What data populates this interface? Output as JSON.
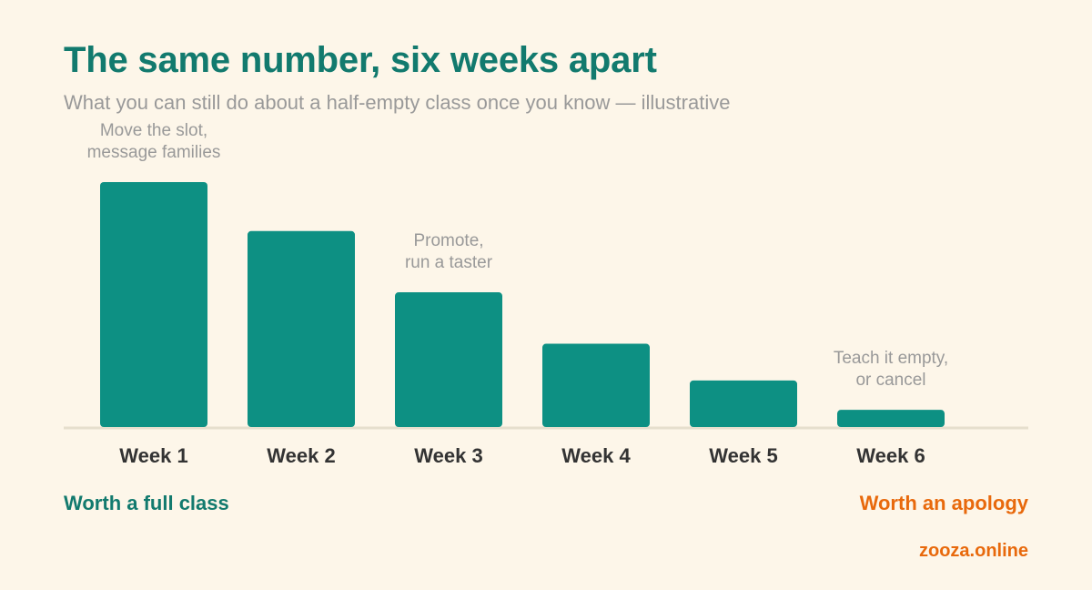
{
  "title": "The same number, six weeks apart",
  "subtitle": "What you can still do about a half-empty class once you know — illustrative",
  "colors": {
    "title": "#127a6e",
    "bar": "#0d9083",
    "baseline": "#e6dfcd",
    "annotation": "#999999",
    "tick_label": "#333333",
    "footer_left": "#127a6e",
    "footer_right": "#e8690c",
    "background": "#fdf6e9"
  },
  "chart_data": {
    "type": "bar",
    "title": "The same number, six weeks apart",
    "subtitle": "What you can still do about a half-empty class once you know — illustrative",
    "xlabel": "",
    "ylabel": "",
    "categories": [
      "Week 1",
      "Week 2",
      "Week 3",
      "Week 4",
      "Week 5",
      "Week 6"
    ],
    "values": [
      100,
      80,
      55,
      34,
      19,
      7
    ],
    "ylim": [
      0,
      100
    ],
    "grid": false,
    "legend": "none",
    "annotations": [
      {
        "category": "Week 1",
        "lines": [
          "Move the slot,",
          "message families"
        ]
      },
      {
        "category": "Week 3",
        "lines": [
          "Promote,",
          "run a taster"
        ]
      },
      {
        "category": "Week 6",
        "lines": [
          "Teach it empty,",
          "or cancel"
        ]
      }
    ]
  },
  "footer": {
    "left": "Worth a full class",
    "right": "Worth an apology",
    "brand": "zooza.online"
  }
}
